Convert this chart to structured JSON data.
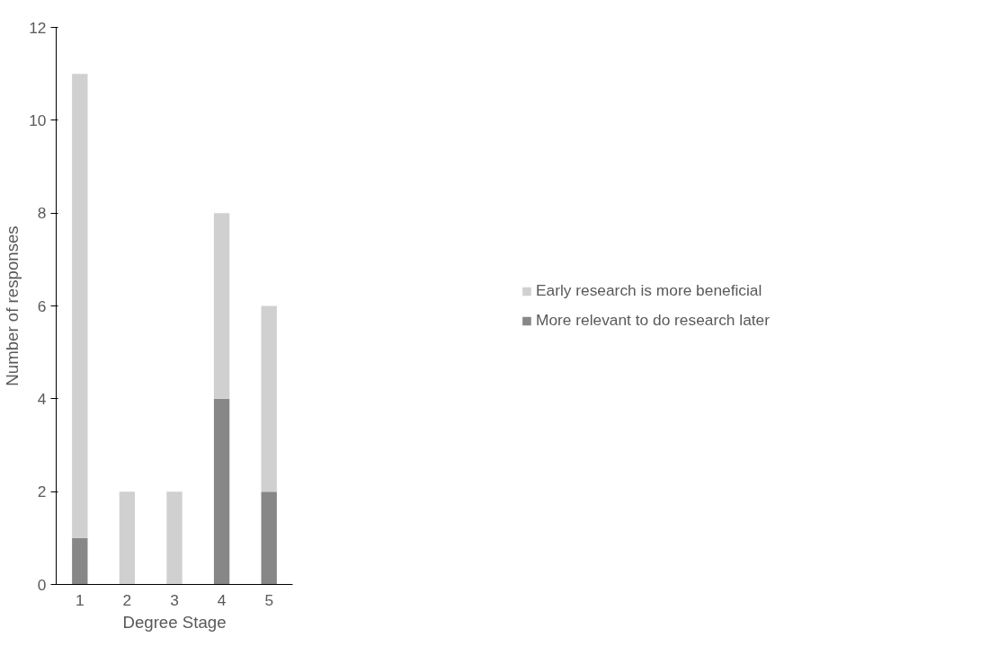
{
  "chart_data": {
    "type": "bar",
    "stacked": true,
    "xlabel": "Degree Stage",
    "ylabel": "Number of responses",
    "categories": [
      "1",
      "2",
      "3",
      "4",
      "5"
    ],
    "series": [
      {
        "name": "More relevant to do research later",
        "color": "#878787",
        "values": [
          1,
          0,
          0,
          4,
          2
        ]
      },
      {
        "name": "Early research is more beneficial",
        "color": "#d0d0d0",
        "values": [
          10,
          2,
          2,
          4,
          4
        ]
      }
    ],
    "ylim": [
      0,
      12
    ],
    "yticks": [
      0,
      2,
      4,
      6,
      8,
      10,
      12
    ],
    "grid": false,
    "legend": "right"
  }
}
